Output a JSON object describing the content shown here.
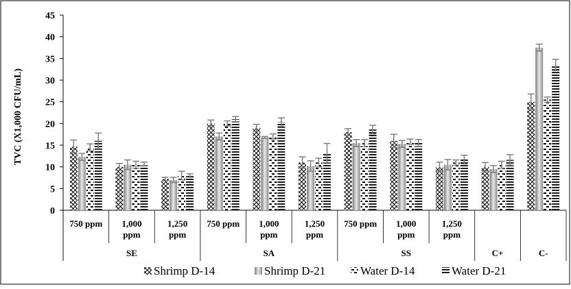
{
  "chart_data": {
    "type": "bar",
    "ylabel": "TVC (X1,000 CFU/mL)",
    "ylim": [
      0,
      45
    ],
    "yticks": [
      0,
      5,
      10,
      15,
      20,
      25,
      30,
      35,
      40,
      45
    ],
    "grid": false,
    "legend_position": "bottom",
    "categories": [
      {
        "group": "SE",
        "label": [
          "750 ppm"
        ]
      },
      {
        "group": "SE",
        "label": [
          "1,000",
          "ppm"
        ]
      },
      {
        "group": "SE",
        "label": [
          "1,250",
          "ppm"
        ]
      },
      {
        "group": "SA",
        "label": [
          "750 ppm"
        ]
      },
      {
        "group": "SA",
        "label": [
          "1,000",
          "ppm"
        ]
      },
      {
        "group": "SA",
        "label": [
          "1,250",
          "ppm"
        ]
      },
      {
        "group": "SS",
        "label": [
          "750 ppm"
        ]
      },
      {
        "group": "SS",
        "label": [
          "1,000",
          "ppm"
        ]
      },
      {
        "group": "SS",
        "label": [
          "1,250",
          "ppm"
        ]
      },
      {
        "group": "C+",
        "label": []
      },
      {
        "group": "C-",
        "label": []
      }
    ],
    "groups": [
      "SE",
      "SA",
      "SS",
      "C+",
      "C-"
    ],
    "series": [
      {
        "name": "Shrimp D-14",
        "pattern": "cross",
        "values": [
          14.7,
          10.0,
          7.2,
          20.0,
          19.0,
          11.0,
          18.0,
          16.0,
          10.0,
          10.0,
          25.0
        ],
        "errors": [
          1.5,
          0.8,
          0.4,
          0.8,
          0.8,
          1.3,
          0.8,
          1.5,
          1.1,
          1.0,
          1.8
        ]
      },
      {
        "name": "Shrimp D-21",
        "pattern": "gray",
        "values": [
          12.3,
          10.5,
          7.0,
          17.0,
          16.8,
          10.2,
          15.5,
          15.3,
          10.5,
          9.5,
          37.5
        ],
        "errors": [
          0.8,
          1.1,
          0.6,
          0.8,
          0.2,
          1.2,
          0.8,
          0.8,
          1.2,
          0.8,
          0.8
        ]
      },
      {
        "name": "Water D-14",
        "pattern": "dash",
        "values": [
          14.5,
          10.5,
          8.0,
          20.0,
          17.0,
          11.0,
          15.5,
          15.8,
          11.0,
          10.5,
          25.5
        ],
        "errors": [
          0.8,
          0.8,
          1.0,
          0.6,
          0.6,
          1.0,
          0.8,
          0.6,
          0.6,
          0.8,
          0.6
        ]
      },
      {
        "name": "Water D-21",
        "pattern": "hline",
        "values": [
          16.0,
          10.7,
          8.0,
          21.0,
          20.3,
          13.2,
          18.6,
          15.5,
          11.7,
          11.6,
          33.5
        ],
        "errors": [
          1.8,
          0.4,
          0.4,
          0.6,
          1.0,
          2.2,
          1.0,
          0.8,
          1.0,
          1.2,
          1.3
        ]
      }
    ],
    "colors": {
      "axis": "#000000",
      "error_bar": "#7f7f7f",
      "gray_bar_dark": "#8c8c8c",
      "gray_bar_light": "#e6e6e6",
      "pattern_ink": "#000000"
    }
  }
}
